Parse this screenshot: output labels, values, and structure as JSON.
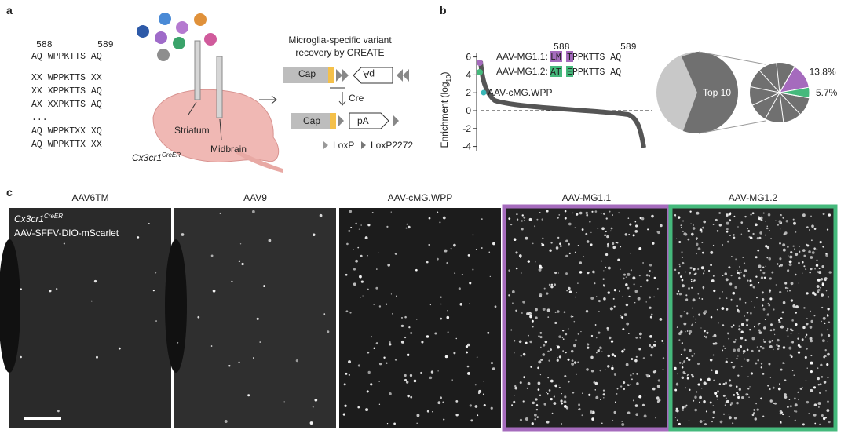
{
  "panel_a": {
    "label": "a",
    "positions": [
      "588",
      "589"
    ],
    "sequences": [
      "AQ WPPKTTS AQ",
      "XX WPPKTTS XX",
      "XX XPPKTTS AQ",
      "AX XXPKTTS AQ",
      "...",
      "AQ WPPKTXX XQ",
      "AQ WPPKTTX XX"
    ],
    "brain": {
      "striatum": "Striatum",
      "midbrain": "Midbrain",
      "mouse": "Cx3cr1",
      "mouse_sup": "CreER"
    },
    "create": {
      "title_line1": "Microglia-specific variant",
      "title_line2": "recovery by CREATE",
      "cap_before": "Cap",
      "pa_before": "pA",
      "cre": "Cre",
      "cap_after": "Cap",
      "pa_after": "pA",
      "loxp": "LoxP",
      "loxp2272": "LoxP2272"
    }
  },
  "panel_b": {
    "label": "b",
    "y_axis": {
      "label_main": "Enrichment (log",
      "label_sub": "10",
      "label_end": ")",
      "ticks": [
        6,
        4,
        2,
        0,
        -2,
        -4
      ]
    },
    "positions": [
      "588",
      "589"
    ],
    "variants": [
      {
        "name": "AAV-MG1.1:",
        "mut1": "LM",
        "mut2": "T",
        "rest": "PPKTTS AQ",
        "color": "#a56bbd"
      },
      {
        "name": "AAV-MG1.2:",
        "mut1": "AT",
        "mut2": "E",
        "rest": "PPKTTS AQ",
        "color": "#45b97c"
      }
    ],
    "reference": "AAV-cMG.WPP",
    "pie": {
      "center_label": "Top 10",
      "segments": [
        {
          "value": 13.8,
          "label": "13.8%",
          "color": "#a56bbd"
        },
        {
          "value": 5.7,
          "label": "5.7%",
          "color": "#45b97c"
        }
      ]
    }
  },
  "panel_c": {
    "label": "c",
    "columns": [
      "AAV6TM",
      "AAV9",
      "AAV-cMG.WPP",
      "AAV-MG1.1",
      "AAV-MG1.2"
    ],
    "overlay_line1": "Cx3cr1",
    "overlay_sup": "CreER",
    "overlay_line2": "AAV-SFFV-DIO-mScarlet"
  }
}
